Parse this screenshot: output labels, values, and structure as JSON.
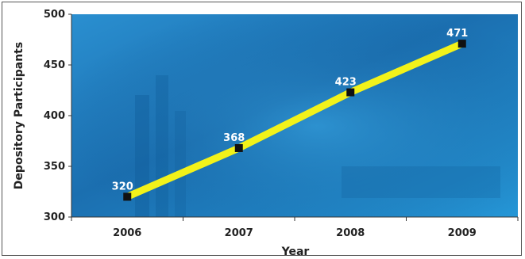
{
  "chart_data": {
    "type": "line",
    "title": "",
    "xlabel": "Year",
    "ylabel": "Depository Participants",
    "categories": [
      "2006",
      "2007",
      "2008",
      "2009"
    ],
    "series": [
      {
        "values": [
          320,
          368,
          423,
          471
        ],
        "labels": [
          "320",
          "368",
          "423",
          "471"
        ]
      }
    ],
    "ylim": [
      300,
      500
    ],
    "yticks": [
      "300",
      "350",
      "400",
      "450",
      "500"
    ],
    "colors": {
      "line": "#f2f21a",
      "marker": "#111111",
      "plot_bg": "#1f86c4"
    },
    "legend": "none",
    "grid": false
  }
}
